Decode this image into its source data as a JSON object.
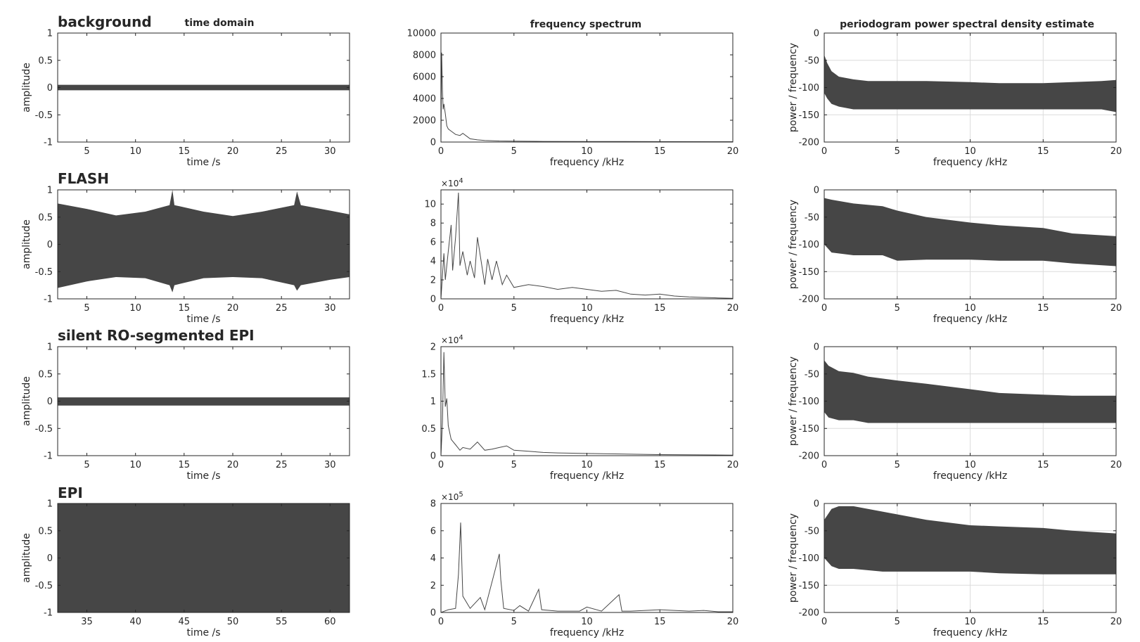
{
  "column_titles": [
    "time domain",
    "frequency spectrum",
    "periodogram power spectral density estimate"
  ],
  "colors": {
    "trace": "#464646",
    "axes": "#262626",
    "grid": "#dcdcdc",
    "background": "#ffffff"
  },
  "chart_data": [
    {
      "type": "line",
      "row": 0,
      "col": 0,
      "panel_title": "background",
      "title": "",
      "xlabel": "time /s",
      "ylabel": "amplitude",
      "xlim": [
        2,
        32
      ],
      "ylim": [
        -1,
        1
      ],
      "grid": false,
      "xticks": [
        5,
        10,
        15,
        20,
        25,
        30
      ],
      "xtick_labels": [
        "5",
        "10",
        "15",
        "20",
        "25",
        "30"
      ],
      "yticks": [
        -1,
        -0.5,
        0,
        0.5,
        1
      ],
      "ytick_labels": [
        "-1",
        "-0.5",
        "0",
        "0.5",
        "1"
      ],
      "series": [
        {
          "type": "envelope",
          "x": [
            2,
            8,
            14,
            20,
            26,
            32
          ],
          "upper": [
            0.05,
            0.05,
            0.05,
            0.05,
            0.05,
            0.05
          ],
          "lower": [
            -0.05,
            -0.05,
            -0.05,
            -0.05,
            -0.05,
            -0.05
          ]
        }
      ]
    },
    {
      "type": "line",
      "row": 0,
      "col": 1,
      "title": "",
      "xlabel": "frequency /kHz",
      "ylabel": "",
      "xlim": [
        0,
        20
      ],
      "ylim": [
        0,
        10000
      ],
      "grid": false,
      "exponent": "",
      "xticks": [
        0,
        5,
        10,
        15,
        20
      ],
      "xtick_labels": [
        "0",
        "5",
        "10",
        "15",
        "20"
      ],
      "yticks": [
        0,
        2000,
        4000,
        6000,
        8000,
        10000
      ],
      "ytick_labels": [
        "0",
        "2000",
        "4000",
        "6000",
        "8000",
        "10000"
      ],
      "series": [
        {
          "type": "line",
          "x": [
            0,
            0.05,
            0.1,
            0.15,
            0.2,
            0.3,
            0.4,
            0.5,
            0.7,
            1.0,
            1.3,
            1.5,
            1.8,
            2.0,
            2.5,
            3.0,
            4.0,
            5.0,
            7.0,
            10.0,
            15.0,
            20.0
          ],
          "y": [
            0,
            8200,
            4800,
            3000,
            3500,
            2600,
            1500,
            1200,
            1000,
            700,
            600,
            800,
            500,
            300,
            200,
            150,
            100,
            80,
            60,
            50,
            40,
            30
          ]
        }
      ]
    },
    {
      "type": "line",
      "row": 0,
      "col": 2,
      "title": "",
      "xlabel": "frequency /kHz",
      "ylabel": "power / frequency",
      "xlim": [
        0,
        20
      ],
      "ylim": [
        -200,
        0
      ],
      "grid": true,
      "xticks": [
        0,
        5,
        10,
        15,
        20
      ],
      "xtick_labels": [
        "0",
        "5",
        "10",
        "15",
        "20"
      ],
      "yticks": [
        -200,
        -150,
        -100,
        -50,
        0
      ],
      "ytick_labels": [
        "-200",
        "-150",
        "-100",
        "-50",
        "0"
      ],
      "series": [
        {
          "type": "envelope",
          "x": [
            0,
            0.2,
            0.5,
            1,
            2,
            3,
            5,
            7,
            10,
            12,
            15,
            17,
            19,
            20
          ],
          "upper": [
            -40,
            -55,
            -70,
            -80,
            -85,
            -88,
            -88,
            -88,
            -90,
            -92,
            -92,
            -90,
            -88,
            -86
          ],
          "lower": [
            -110,
            -120,
            -130,
            -135,
            -140,
            -140,
            -140,
            -140,
            -140,
            -140,
            -140,
            -140,
            -140,
            -145
          ]
        }
      ]
    },
    {
      "type": "line",
      "row": 1,
      "col": 0,
      "panel_title": "FLASH",
      "title": "",
      "xlabel": "time /s",
      "ylabel": "amplitude",
      "xlim": [
        2,
        32
      ],
      "ylim": [
        -1,
        1
      ],
      "grid": false,
      "xticks": [
        5,
        10,
        15,
        20,
        25,
        30
      ],
      "xtick_labels": [
        "5",
        "10",
        "15",
        "20",
        "25",
        "30"
      ],
      "yticks": [
        -1,
        -0.5,
        0,
        0.5,
        1
      ],
      "ytick_labels": [
        "-1",
        "-0.5",
        "0",
        "0.5",
        "1"
      ],
      "series": [
        {
          "type": "envelope",
          "x": [
            2,
            5,
            8,
            11,
            13.5,
            13.8,
            14,
            17,
            20,
            23,
            26.3,
            26.6,
            27,
            30,
            32
          ],
          "upper": [
            0.75,
            0.65,
            0.53,
            0.6,
            0.72,
            1.0,
            0.72,
            0.6,
            0.52,
            0.6,
            0.72,
            0.97,
            0.72,
            0.62,
            0.55
          ],
          "lower": [
            -0.8,
            -0.68,
            -0.6,
            -0.62,
            -0.75,
            -0.88,
            -0.75,
            -0.62,
            -0.6,
            -0.62,
            -0.75,
            -0.85,
            -0.75,
            -0.65,
            -0.6
          ]
        }
      ]
    },
    {
      "type": "line",
      "row": 1,
      "col": 1,
      "title": "",
      "xlabel": "frequency /kHz",
      "ylabel": "",
      "xlim": [
        0,
        20
      ],
      "ylim": [
        0,
        11.5
      ],
      "grid": false,
      "exponent": "4",
      "xticks": [
        0,
        5,
        10,
        15,
        20
      ],
      "xtick_labels": [
        "0",
        "5",
        "10",
        "15",
        "20"
      ],
      "yticks": [
        0,
        2,
        4,
        6,
        8,
        10
      ],
      "ytick_labels": [
        "0",
        "2",
        "4",
        "6",
        "8",
        "10"
      ],
      "series": [
        {
          "type": "line",
          "x": [
            0,
            0.2,
            0.3,
            0.5,
            0.7,
            0.8,
            1.0,
            1.2,
            1.3,
            1.5,
            1.8,
            2.0,
            2.3,
            2.5,
            3.0,
            3.2,
            3.5,
            3.8,
            4.2,
            4.5,
            5.0,
            6.0,
            7.0,
            8.0,
            9.0,
            10.0,
            11.0,
            12.0,
            13.0,
            14.0,
            15.0,
            16.0,
            17.0,
            18.0,
            19.0,
            20.0
          ],
          "y": [
            0,
            4.8,
            2.0,
            5.0,
            7.8,
            3.0,
            6.5,
            11.2,
            3.5,
            5.0,
            2.5,
            4.0,
            2.2,
            6.5,
            1.5,
            4.2,
            2.0,
            4.0,
            1.5,
            2.5,
            1.2,
            1.5,
            1.3,
            1.0,
            1.2,
            1.0,
            0.8,
            0.9,
            0.5,
            0.4,
            0.5,
            0.3,
            0.2,
            0.15,
            0.1,
            0.05
          ]
        }
      ]
    },
    {
      "type": "line",
      "row": 1,
      "col": 2,
      "title": "",
      "xlabel": "frequency /kHz",
      "ylabel": "power / frequency",
      "xlim": [
        0,
        20
      ],
      "ylim": [
        -200,
        0
      ],
      "grid": true,
      "xticks": [
        0,
        5,
        10,
        15,
        20
      ],
      "xtick_labels": [
        "0",
        "5",
        "10",
        "15",
        "20"
      ],
      "yticks": [
        -200,
        -150,
        -100,
        -50,
        0
      ],
      "ytick_labels": [
        "-200",
        "-150",
        "-100",
        "-50",
        "0"
      ],
      "series": [
        {
          "type": "envelope",
          "x": [
            0,
            0.5,
            2,
            4,
            5,
            7,
            10,
            12,
            15,
            17,
            20
          ],
          "upper": [
            -15,
            -18,
            -25,
            -30,
            -38,
            -50,
            -60,
            -65,
            -70,
            -80,
            -85
          ],
          "lower": [
            -100,
            -115,
            -120,
            -120,
            -130,
            -128,
            -128,
            -130,
            -130,
            -135,
            -140
          ]
        }
      ]
    },
    {
      "type": "line",
      "row": 2,
      "col": 0,
      "panel_title": "silent RO-segmented EPI",
      "title": "",
      "xlabel": "time /s",
      "ylabel": "amplitude",
      "xlim": [
        2,
        32
      ],
      "ylim": [
        -1,
        1
      ],
      "grid": false,
      "xticks": [
        5,
        10,
        15,
        20,
        25,
        30
      ],
      "xtick_labels": [
        "5",
        "10",
        "15",
        "20",
        "25",
        "30"
      ],
      "yticks": [
        -1,
        -0.5,
        0,
        0.5,
        1
      ],
      "ytick_labels": [
        "-1",
        "-0.5",
        "0",
        "0.5",
        "1"
      ],
      "series": [
        {
          "type": "envelope",
          "x": [
            2,
            8,
            14,
            20,
            26,
            32
          ],
          "upper": [
            0.07,
            0.07,
            0.07,
            0.07,
            0.07,
            0.07
          ],
          "lower": [
            -0.08,
            -0.08,
            -0.08,
            -0.08,
            -0.08,
            -0.08
          ]
        }
      ]
    },
    {
      "type": "line",
      "row": 2,
      "col": 1,
      "title": "",
      "xlabel": "frequency /kHz",
      "ylabel": "",
      "xlim": [
        0,
        20
      ],
      "ylim": [
        0,
        2
      ],
      "grid": false,
      "exponent": "4",
      "xticks": [
        0,
        5,
        10,
        15,
        20
      ],
      "xtick_labels": [
        "0",
        "5",
        "10",
        "15",
        "20"
      ],
      "yticks": [
        0,
        0.5,
        1,
        1.5,
        2
      ],
      "ytick_labels": [
        "0",
        "0.5",
        "1",
        "1.5",
        "2"
      ],
      "series": [
        {
          "type": "line",
          "x": [
            0,
            0.1,
            0.2,
            0.3,
            0.4,
            0.5,
            0.7,
            1.0,
            1.3,
            1.5,
            2.0,
            2.5,
            3.0,
            3.5,
            4.0,
            4.5,
            5.0,
            6.0,
            7.0,
            8.0,
            10.0,
            15.0,
            20.0
          ],
          "y": [
            0,
            0.6,
            1.9,
            0.9,
            1.05,
            0.55,
            0.3,
            0.2,
            0.1,
            0.15,
            0.12,
            0.25,
            0.1,
            0.12,
            0.15,
            0.18,
            0.1,
            0.08,
            0.06,
            0.05,
            0.04,
            0.02,
            0.01
          ]
        }
      ]
    },
    {
      "type": "line",
      "row": 2,
      "col": 2,
      "title": "",
      "xlabel": "frequency /kHz",
      "ylabel": "power / frequency",
      "xlim": [
        0,
        20
      ],
      "ylim": [
        -200,
        0
      ],
      "grid": true,
      "xticks": [
        0,
        5,
        10,
        15,
        20
      ],
      "xtick_labels": [
        "0",
        "5",
        "10",
        "15",
        "20"
      ],
      "yticks": [
        -200,
        -150,
        -100,
        -50,
        0
      ],
      "ytick_labels": [
        "-200",
        "-150",
        "-100",
        "-50",
        "0"
      ],
      "series": [
        {
          "type": "envelope",
          "x": [
            0,
            0.3,
            1,
            2,
            3,
            5,
            7,
            10,
            12,
            15,
            17,
            20
          ],
          "upper": [
            -25,
            -35,
            -45,
            -48,
            -55,
            -62,
            -68,
            -78,
            -85,
            -88,
            -90,
            -90
          ],
          "lower": [
            -120,
            -130,
            -135,
            -135,
            -140,
            -140,
            -140,
            -140,
            -140,
            -140,
            -140,
            -140
          ]
        }
      ]
    },
    {
      "type": "line",
      "row": 3,
      "col": 0,
      "panel_title": "EPI",
      "title": "",
      "xlabel": "time /s",
      "ylabel": "amplitude",
      "xlim": [
        32,
        62
      ],
      "ylim": [
        -1,
        1
      ],
      "grid": false,
      "xticks": [
        35,
        40,
        45,
        50,
        55,
        60
      ],
      "xtick_labels": [
        "35",
        "40",
        "45",
        "50",
        "55",
        "60"
      ],
      "yticks": [
        -1,
        -0.5,
        0,
        0.5,
        1
      ],
      "ytick_labels": [
        "-1",
        "-0.5",
        "0",
        "0.5",
        "1"
      ],
      "series": [
        {
          "type": "envelope",
          "x": [
            32,
            62
          ],
          "upper": [
            1,
            1
          ],
          "lower": [
            -1,
            -1
          ]
        }
      ]
    },
    {
      "type": "line",
      "row": 3,
      "col": 1,
      "title": "",
      "xlabel": "frequency /kHz",
      "ylabel": "",
      "xlim": [
        0,
        20
      ],
      "ylim": [
        0,
        8
      ],
      "grid": false,
      "exponent": "5",
      "xticks": [
        0,
        5,
        10,
        15,
        20
      ],
      "xtick_labels": [
        "0",
        "5",
        "10",
        "15",
        "20"
      ],
      "yticks": [
        0,
        2,
        4,
        6,
        8
      ],
      "ytick_labels": [
        "0",
        "2",
        "4",
        "6",
        "8"
      ],
      "series": [
        {
          "type": "line",
          "x": [
            0,
            0.5,
            1.0,
            1.2,
            1.35,
            1.5,
            2.0,
            2.7,
            3.0,
            4.0,
            4.1,
            4.3,
            5.0,
            5.4,
            6.0,
            6.7,
            6.9,
            8.0,
            9.5,
            10.0,
            11.0,
            12.2,
            12.4,
            13.0,
            15.0,
            17.0,
            18.0,
            19.0,
            20.0
          ],
          "y": [
            0,
            0.2,
            0.3,
            2.8,
            6.6,
            1.2,
            0.3,
            1.1,
            0.2,
            4.3,
            2.4,
            0.3,
            0.15,
            0.5,
            0.1,
            1.7,
            0.2,
            0.1,
            0.1,
            0.4,
            0.1,
            1.3,
            0.1,
            0.1,
            0.2,
            0.1,
            0.15,
            0.05,
            0.05
          ]
        }
      ]
    },
    {
      "type": "line",
      "row": 3,
      "col": 2,
      "title": "",
      "xlabel": "frequency /kHz",
      "ylabel": "power / frequency",
      "xlim": [
        0,
        20
      ],
      "ylim": [
        -200,
        0
      ],
      "grid": true,
      "xticks": [
        0,
        5,
        10,
        15,
        20
      ],
      "xtick_labels": [
        "0",
        "5",
        "10",
        "15",
        "20"
      ],
      "yticks": [
        -200,
        -150,
        -100,
        -50,
        0
      ],
      "ytick_labels": [
        "-200",
        "-150",
        "-100",
        "-50",
        "0"
      ],
      "series": [
        {
          "type": "envelope",
          "x": [
            0,
            0.5,
            1,
            2,
            4,
            5,
            7,
            10,
            12,
            15,
            17,
            20
          ],
          "upper": [
            -30,
            -10,
            -5,
            -5,
            -15,
            -20,
            -30,
            -40,
            -42,
            -45,
            -50,
            -55
          ],
          "lower": [
            -100,
            -115,
            -120,
            -120,
            -125,
            -125,
            -125,
            -125,
            -128,
            -130,
            -130,
            -130
          ]
        }
      ]
    }
  ]
}
